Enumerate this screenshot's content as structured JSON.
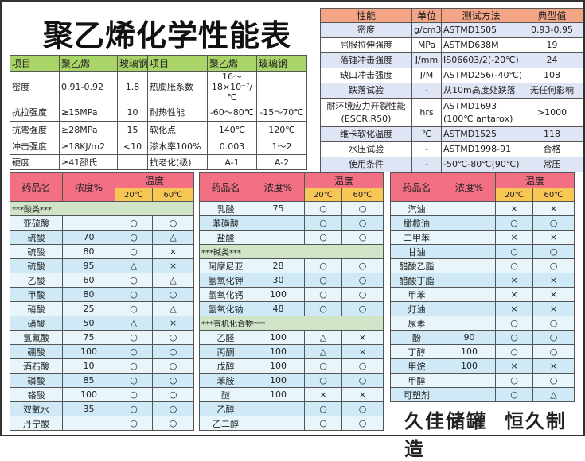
{
  "title": "聚乙烯化学性能表",
  "properties": {
    "headers": [
      "项目",
      "聚乙烯",
      "玻璃钢",
      "项目",
      "聚乙烯",
      "玻璃钢"
    ],
    "rows": [
      [
        "密度",
        "0.91-0.92",
        "1.8",
        "热膨胀系数",
        "16～18×10⁻⁷/℃",
        ""
      ],
      [
        "抗拉强度",
        "≥15MPa",
        "10",
        "耐热性能",
        "-60～80℃",
        "-15～70℃"
      ],
      [
        "抗弯强度",
        "≥28MPa",
        "15",
        "软化点",
        "140℃",
        "120℃"
      ],
      [
        "冲击强度",
        "≥18KJ/m2",
        "<10",
        "渗水率100%",
        "0.003",
        "1～2"
      ],
      [
        "硬度",
        "≥41邵氏",
        "",
        "抗老化(级)",
        "A-1",
        "A-2"
      ]
    ]
  },
  "spec": {
    "headers": [
      "性能",
      "单位",
      "测试方法",
      "典型值"
    ],
    "rows": [
      [
        "密度",
        "g/cm3",
        "ASTMD1505",
        "0.93-0.95"
      ],
      [
        "屈服拉伸强度",
        "MPa",
        "ASTMD638M",
        "19"
      ],
      [
        "落锤冲击强度",
        "J/mm",
        "IS06603/2(-20℃)",
        "24"
      ],
      [
        "缺口冲击强度",
        "J/M",
        "ASTMD256(-40℃)",
        "108"
      ],
      [
        "跌落试验",
        "-",
        "从10m高度处跌落",
        "无任何影响"
      ],
      [
        "耐环境应力开裂性能(ESCR,R50)",
        "hrs",
        "ASTMD1693 (100℃ antarox)",
        ">1000"
      ],
      [
        "维卡软化温度",
        "℃",
        "ASTMD1525",
        "118"
      ],
      [
        "水压试验",
        "-",
        "ASTMD1998-91",
        "合格"
      ],
      [
        "使用条件",
        "-",
        "-50℃-80℃(90℃)",
        "常压"
      ]
    ]
  },
  "chem_headers": {
    "name": "药品名",
    "conc": "浓度%",
    "temp": "温度",
    "t20": "20℃",
    "t60": "60℃"
  },
  "chem_tables": [
    [
      {
        "section": "***酸类***"
      },
      [
        "亚硫酸",
        "",
        "○",
        "○"
      ],
      [
        "硫酸",
        "70",
        "○",
        "△"
      ],
      [
        "硫酸",
        "80",
        "○",
        "×"
      ],
      [
        "硫酸",
        "95",
        "△",
        "×"
      ],
      [
        "乙酸",
        "60",
        "○",
        "△"
      ],
      [
        "甲酸",
        "80",
        "○",
        "○"
      ],
      [
        "硝酸",
        "25",
        "○",
        "△"
      ],
      [
        "硝酸",
        "50",
        "△",
        "×"
      ],
      [
        "氢氟酸",
        "75",
        "○",
        "○"
      ],
      [
        "硼酸",
        "100",
        "○",
        "○"
      ],
      [
        "酒石酸",
        "10",
        "○",
        "○"
      ],
      [
        "磷酸",
        "85",
        "○",
        "○"
      ],
      [
        "铬酸",
        "100",
        "○",
        "○"
      ],
      [
        "双氧水",
        "35",
        "○",
        "○"
      ],
      [
        "丹宁酸",
        "",
        "○",
        "○"
      ]
    ],
    [
      [
        "乳酸",
        "75",
        "○",
        "○"
      ],
      [
        "苯磺酸",
        "",
        "○",
        "○"
      ],
      [
        "盐酸",
        "",
        "○",
        "○"
      ],
      {
        "section": "***碱类***"
      },
      [
        "阿摩尼亚",
        "28",
        "○",
        "○"
      ],
      [
        "氢氧化钾",
        "30",
        "○",
        "○"
      ],
      [
        "氢氧化钙",
        "100",
        "○",
        "○"
      ],
      [
        "氢氧化钠",
        "48",
        "○",
        "○"
      ],
      {
        "section": "***有机化合物***"
      },
      [
        "乙醛",
        "100",
        "△",
        "×"
      ],
      [
        "丙酮",
        "100",
        "△",
        "×"
      ],
      [
        "戊醇",
        "100",
        "○",
        "○"
      ],
      [
        "苯胺",
        "100",
        "○",
        "○"
      ],
      [
        "醚",
        "100",
        "×",
        "×"
      ],
      [
        "乙醇",
        "",
        "○",
        "○"
      ],
      [
        "乙二醇",
        "",
        "○",
        "○"
      ]
    ],
    [
      [
        "汽油",
        "",
        "×",
        "×"
      ],
      [
        "橄榄油",
        "",
        "○",
        "○"
      ],
      [
        "二甲苯",
        "",
        "×",
        "×"
      ],
      [
        "甘油",
        "",
        "○",
        "○"
      ],
      [
        "醋酸乙脂",
        "",
        "○",
        "○"
      ],
      [
        "醋酸丁脂",
        "",
        "×",
        "×"
      ],
      [
        "甲苯",
        "",
        "×",
        "×"
      ],
      [
        "灯油",
        "",
        "×",
        "×"
      ],
      [
        "尿素",
        "",
        "○",
        "○"
      ],
      [
        "酚",
        "90",
        "○",
        "○"
      ],
      [
        "丁醇",
        "100",
        "○",
        "○"
      ],
      [
        "甲烷",
        "100",
        "×",
        "×"
      ],
      [
        "甲醇",
        "",
        "○",
        "○"
      ],
      [
        "可塑剂",
        "",
        "○",
        "△"
      ]
    ]
  ],
  "slogan": [
    "久佳储罐",
    "恒久制造"
  ]
}
